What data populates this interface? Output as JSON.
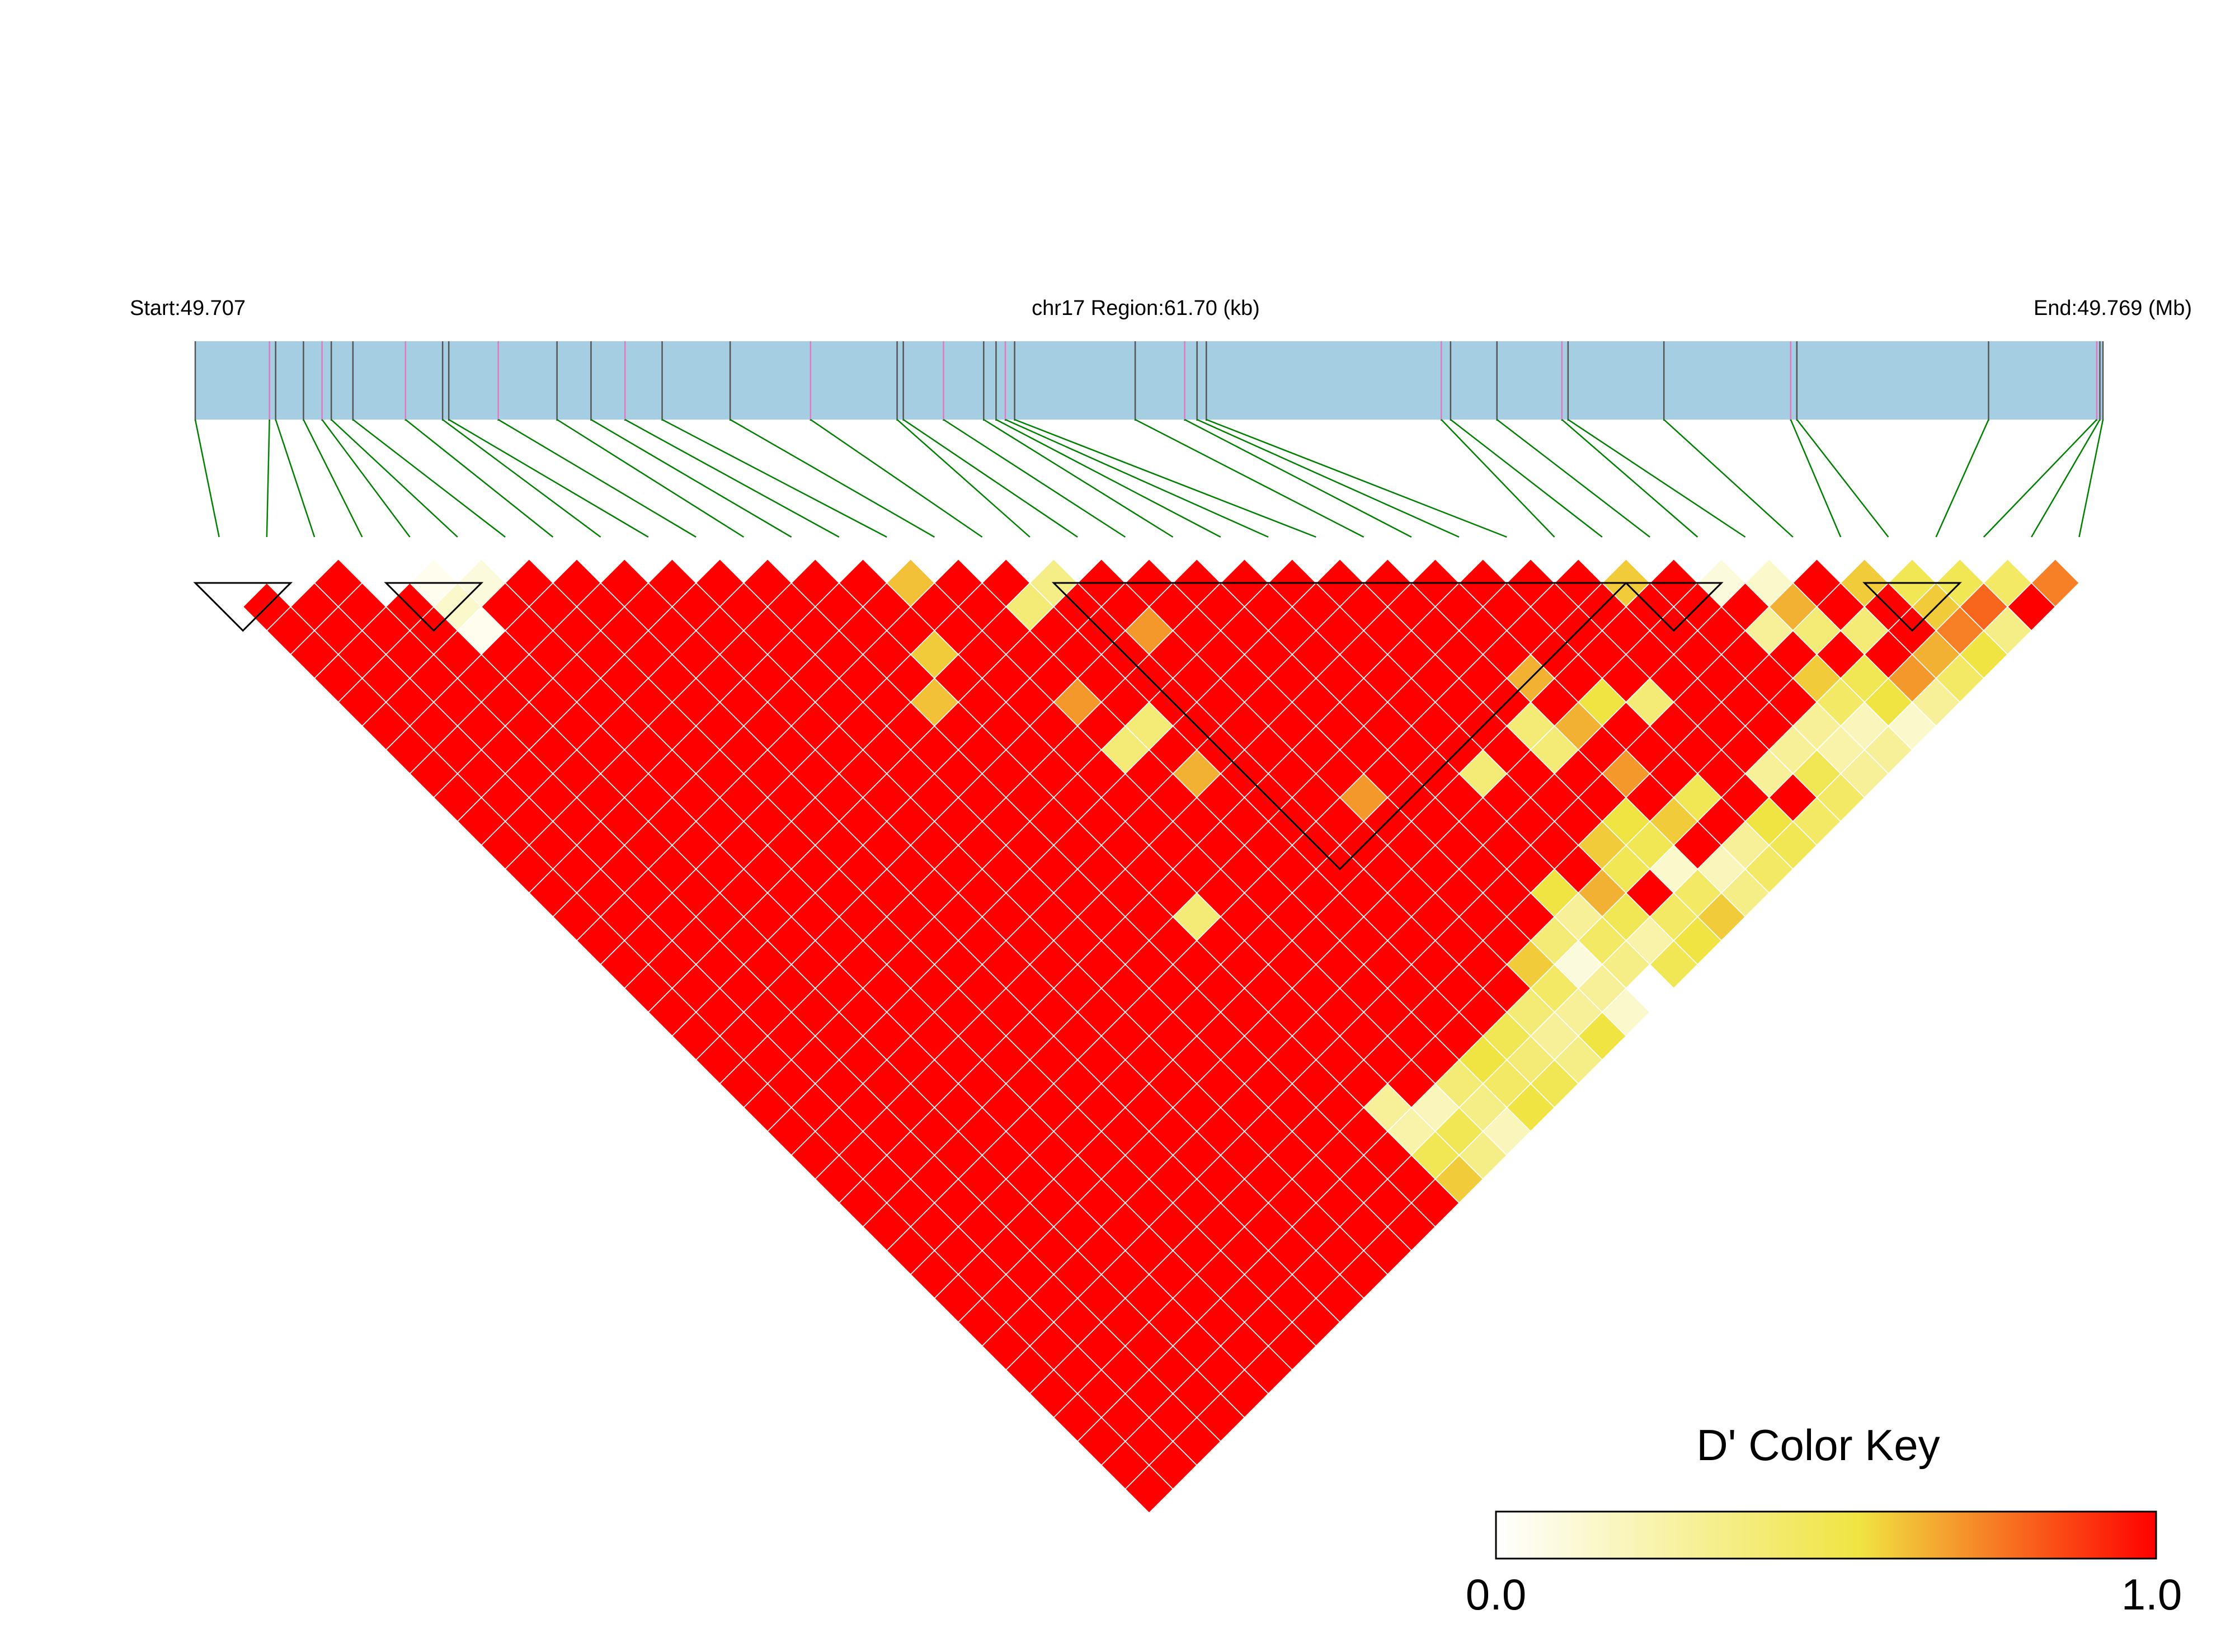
{
  "chart_data": {
    "type": "heatmap",
    "title": "",
    "region": {
      "chromosome": "chr17",
      "start_label": "Start:49.707",
      "center_label": "chr17 Region:61.70 (kb)",
      "end_label": "End:49.769 (Mb)",
      "start_mb": 49.707,
      "end_mb": 49.769,
      "length_kb": 61.7
    },
    "snp_count": 40,
    "snp_positions_kb": [
      0.0,
      2.4,
      2.6,
      3.5,
      4.1,
      4.4,
      5.1,
      6.8,
      8.0,
      8.2,
      9.8,
      11.7,
      12.8,
      13.9,
      15.1,
      17.3,
      19.9,
      22.7,
      22.9,
      24.2,
      25.5,
      25.9,
      26.2,
      26.5,
      30.4,
      32.0,
      32.4,
      32.7,
      40.3,
      40.6,
      42.1,
      44.2,
      44.4,
      47.5,
      51.6,
      51.8,
      58.0,
      61.5,
      61.6,
      61.7
    ],
    "ld_exceptions": [
      [
        1,
        2,
        0.0
      ],
      [
        2,
        3,
        0.0
      ],
      [
        4,
        5,
        0.0
      ],
      [
        5,
        6,
        0.05
      ],
      [
        6,
        7,
        0.1
      ],
      [
        15,
        16,
        0.62
      ],
      [
        18,
        19,
        0.35
      ],
      [
        30,
        31,
        0.6
      ],
      [
        32,
        33,
        0.1
      ],
      [
        33,
        34,
        0.15
      ],
      [
        35,
        36,
        0.6
      ],
      [
        36,
        37,
        0.5
      ],
      [
        37,
        38,
        0.5
      ],
      [
        38,
        39,
        0.45
      ],
      [
        39,
        40,
        0.75
      ],
      [
        5,
        7,
        0.15
      ],
      [
        17,
        19,
        0.4
      ],
      [
        33,
        35,
        0.65
      ],
      [
        36,
        38,
        0.6
      ],
      [
        37,
        39,
        0.8
      ],
      [
        5,
        8,
        0.05
      ],
      [
        32,
        35,
        0.3
      ],
      [
        36,
        39,
        0.75
      ],
      [
        37,
        40,
        0.35
      ],
      [
        36,
        40,
        0.55
      ],
      [
        35,
        39,
        0.65
      ],
      [
        34,
        37,
        0.4
      ],
      [
        33,
        36,
        0.4
      ],
      [
        14,
        18,
        0.6
      ],
      [
        19,
        22,
        0.7
      ],
      [
        35,
        40,
        0.45
      ],
      [
        34,
        39,
        0.7
      ],
      [
        32,
        37,
        0.6
      ],
      [
        33,
        38,
        0.5
      ],
      [
        26,
        31,
        0.65
      ],
      [
        13,
        19,
        0.62
      ],
      [
        16,
        22,
        0.7
      ],
      [
        32,
        38,
        0.45
      ],
      [
        33,
        39,
        0.55
      ],
      [
        34,
        40,
        0.3
      ],
      [
        27,
        33,
        0.55
      ],
      [
        28,
        34,
        0.4
      ],
      [
        17,
        24,
        0.4
      ],
      [
        25,
        32,
        0.4
      ],
      [
        26,
        33,
        0.65
      ],
      [
        31,
        38,
        0.3
      ],
      [
        32,
        39,
        0.2
      ],
      [
        33,
        40,
        0.15
      ],
      [
        16,
        24,
        0.4
      ],
      [
        25,
        33,
        0.4
      ],
      [
        30,
        38,
        0.3
      ],
      [
        31,
        39,
        0.25
      ],
      [
        32,
        40,
        0.3
      ],
      [
        17,
        26,
        0.65
      ],
      [
        23,
        32,
        0.4
      ],
      [
        26,
        35,
        0.7
      ],
      [
        30,
        39,
        0.5
      ],
      [
        31,
        40,
        0.3
      ],
      [
        29,
        38,
        0.3
      ],
      [
        30,
        40,
        0.45
      ],
      [
        20,
        30,
        0.7
      ],
      [
        27,
        37,
        0.5
      ],
      [
        28,
        39,
        0.55
      ],
      [
        29,
        40,
        0.45
      ],
      [
        25,
        36,
        0.55
      ],
      [
        26,
        37,
        0.6
      ],
      [
        27,
        39,
        0.3
      ],
      [
        28,
        40,
        0.5
      ],
      [
        24,
        36,
        0.6
      ],
      [
        25,
        37,
        0.5
      ],
      [
        27,
        40,
        0.45
      ],
      [
        26,
        39,
        0.2
      ],
      [
        25,
        38,
        0.15
      ],
      [
        24,
        37,
        0.5
      ],
      [
        26,
        40,
        0.35
      ],
      [
        25,
        39,
        0.45
      ],
      [
        22,
        36,
        0.55
      ],
      [
        23,
        37,
        0.65
      ],
      [
        25,
        40,
        0.6
      ],
      [
        24,
        39,
        0.45
      ],
      [
        23,
        38,
        0.5
      ],
      [
        14,
        29,
        0.4
      ],
      [
        22,
        37,
        0.3
      ],
      [
        24,
        40,
        0.55
      ],
      [
        23,
        39,
        0.25
      ],
      [
        22,
        38,
        0.45
      ],
      [
        21,
        37,
        0.4
      ],
      [
        23,
        40,
        0.5
      ],
      [
        21,
        38,
        0.1
      ],
      [
        22,
        39,
        0.35
      ],
      [
        20,
        37,
        0.6
      ],
      [
        22,
        40,
        0.0
      ],
      [
        21,
        39,
        0.3
      ],
      [
        20,
        38,
        0.45
      ],
      [
        21,
        40,
        0.15
      ],
      [
        20,
        39,
        0.3
      ],
      [
        19,
        38,
        0.4
      ],
      [
        20,
        40,
        0.55
      ],
      [
        19,
        39,
        0.3
      ],
      [
        18,
        38,
        0.5
      ],
      [
        19,
        40,
        0.35
      ],
      [
        18,
        39,
        0.4
      ],
      [
        17,
        38,
        0.55
      ],
      [
        18,
        40,
        0.5
      ],
      [
        17,
        39,
        0.45
      ],
      [
        16,
        38,
        0.4
      ],
      [
        17,
        40,
        0.55
      ],
      [
        16,
        39,
        0.35
      ],
      [
        15,
        38,
        0.2
      ],
      [
        14,
        37,
        0.3
      ],
      [
        16,
        40,
        0.2
      ],
      [
        15,
        39,
        0.5
      ],
      [
        14,
        38,
        0.25
      ],
      [
        15,
        40,
        0.35
      ],
      [
        14,
        39,
        0.5
      ],
      [
        14,
        40,
        0.6
      ]
    ],
    "ld_default": 1.0,
    "haplotype_blocks": [
      [
        1,
        2
      ],
      [
        5,
        6
      ],
      [
        19,
        30
      ],
      [
        31,
        32
      ],
      [
        36,
        37
      ]
    ],
    "color_key": {
      "title": "D' Color Key",
      "min_label": "0.0",
      "max_label": "1.0",
      "min": 0.0,
      "max": 1.0,
      "colors": [
        "#ffffff",
        "#f0e442",
        "#ff0000"
      ]
    },
    "colors": {
      "gene_band": "#a6cee3",
      "snp_connector": "#008000",
      "tick_gray": "#555555",
      "tick_pink": "#e377c2",
      "cell_border": "#ffffff",
      "block_outline": "#000000"
    }
  }
}
